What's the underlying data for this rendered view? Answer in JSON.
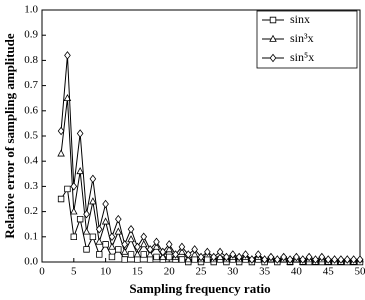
{
  "chart_data": {
    "type": "line",
    "xlabel": "Sampling frequency ratio",
    "ylabel": "Relative error of sampling amplitude",
    "x": [
      3,
      4,
      5,
      6,
      7,
      8,
      9,
      10,
      11,
      12,
      13,
      14,
      15,
      16,
      17,
      18,
      19,
      20,
      21,
      22,
      23,
      24,
      25,
      26,
      27,
      28,
      29,
      30,
      31,
      32,
      33,
      34,
      35,
      36,
      37,
      38,
      39,
      40,
      41,
      42,
      43,
      44,
      45,
      46,
      47,
      48,
      49,
      50
    ],
    "series": [
      {
        "name": "sinx",
        "color": "#000000",
        "marker": "square",
        "values": [
          0.25,
          0.29,
          0.1,
          0.17,
          0.05,
          0.1,
          0.03,
          0.07,
          0.02,
          0.05,
          0.01,
          0.03,
          0.01,
          0.03,
          0.01,
          0.02,
          0.01,
          0.02,
          0.01,
          0.01,
          0,
          0.01,
          0,
          0.01,
          0,
          0.01,
          0,
          0.01,
          0,
          0.01,
          0,
          0.01,
          0,
          0.01,
          0,
          0.01,
          0,
          0.01,
          0,
          0,
          0,
          0,
          0,
          0,
          0,
          0,
          0,
          0
        ]
      },
      {
        "name": "sin³x",
        "color": "#000000",
        "marker": "triangle",
        "values": [
          0.43,
          0.65,
          0.2,
          0.36,
          0.12,
          0.24,
          0.08,
          0.16,
          0.06,
          0.12,
          0.04,
          0.09,
          0.03,
          0.07,
          0.03,
          0.06,
          0.02,
          0.05,
          0.02,
          0.04,
          0.01,
          0.03,
          0.01,
          0.03,
          0.01,
          0.02,
          0.01,
          0.02,
          0.01,
          0.02,
          0.01,
          0.02,
          0.01,
          0.01,
          0.01,
          0.01,
          0,
          0.01,
          0,
          0.01,
          0,
          0.01,
          0,
          0.01,
          0,
          0.01,
          0,
          0.01
        ]
      },
      {
        "name": "sin⁵x",
        "color": "#000000",
        "marker": "diamond",
        "values": [
          0.52,
          0.82,
          0.3,
          0.51,
          0.19,
          0.33,
          0.13,
          0.23,
          0.1,
          0.17,
          0.07,
          0.13,
          0.06,
          0.1,
          0.05,
          0.08,
          0.04,
          0.07,
          0.03,
          0.06,
          0.03,
          0.05,
          0.02,
          0.04,
          0.02,
          0.04,
          0.02,
          0.03,
          0.02,
          0.03,
          0.01,
          0.03,
          0.01,
          0.02,
          0.01,
          0.02,
          0.01,
          0.02,
          0.01,
          0.02,
          0.01,
          0.02,
          0.01,
          0.01,
          0.01,
          0.01,
          0.01,
          0.01
        ]
      }
    ],
    "xlim": [
      0,
      50
    ],
    "xticks": [
      0,
      5,
      10,
      15,
      20,
      25,
      30,
      35,
      40,
      45,
      50
    ],
    "ylim": [
      0,
      1.0
    ],
    "yticks": [
      {
        "value": 0,
        "label": "0.0"
      },
      {
        "value": 0.1,
        "label": "0.1"
      },
      {
        "value": 0.2,
        "label": "0.2"
      },
      {
        "value": 0.3,
        "label": "0.3"
      },
      {
        "value": 0.4,
        "label": "0.4"
      },
      {
        "value": 0.5,
        "label": "0.5"
      },
      {
        "value": 0.6,
        "label": "0.6"
      },
      {
        "value": 0.7,
        "label": "0.7"
      },
      {
        "value": 0.8,
        "label": "0.8"
      },
      {
        "value": 0.9,
        "label": "0.9"
      },
      {
        "value": 1.0,
        "label": "1.0"
      }
    ],
    "grid": false,
    "legend": "upper right"
  }
}
